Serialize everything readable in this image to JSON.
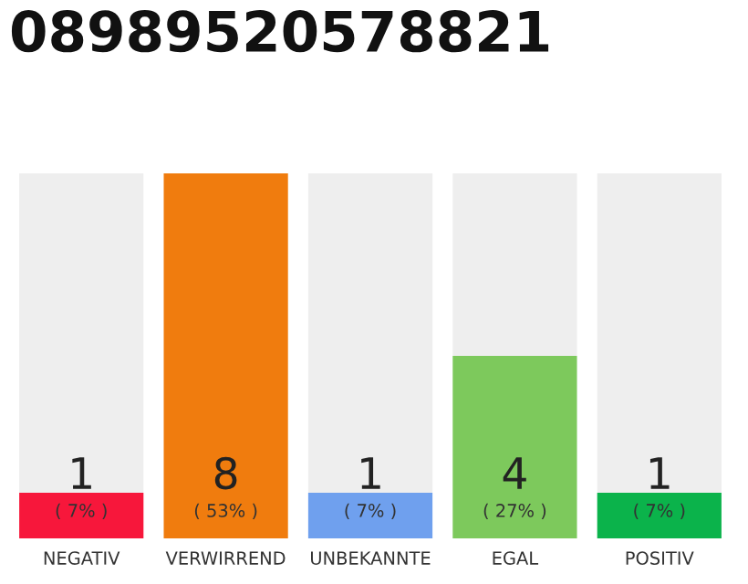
{
  "chart_data": {
    "type": "bar",
    "title": "08989520578821",
    "stacked": true,
    "categories": [
      "NEGATIV",
      "VERWIRREND",
      "UNBEKANNTE",
      "EGAL",
      "POSITIV"
    ],
    "series": [
      {
        "colors": [
          "#f7173b",
          "#f07c0e",
          "#6fa0ee",
          "#7dc95c",
          "#0bb34b"
        ],
        "values": [
          1,
          8,
          1,
          4,
          1
        ],
        "value_labels": [
          "1",
          "8",
          "1",
          "4",
          "1"
        ]
      },
      {
        "color": "#eeeeee",
        "values": [
          7,
          0,
          7,
          4,
          7
        ]
      }
    ],
    "ylim": [
      0,
      8
    ],
    "tick_labels": "x",
    "legend": false,
    "annotations": [
      {
        "text": "( 7% )",
        "x": "NEGATIV",
        "y": 0
      },
      {
        "text": "( 53% )",
        "x": "VERWIRREND",
        "y": 0
      },
      {
        "text": "( 7% )",
        "x": "UNBEKANNTE",
        "y": 0
      },
      {
        "text": "( 27% )",
        "x": "EGAL",
        "y": 0
      },
      {
        "text": "( 7% )",
        "x": "POSITIV",
        "y": 0
      }
    ]
  }
}
